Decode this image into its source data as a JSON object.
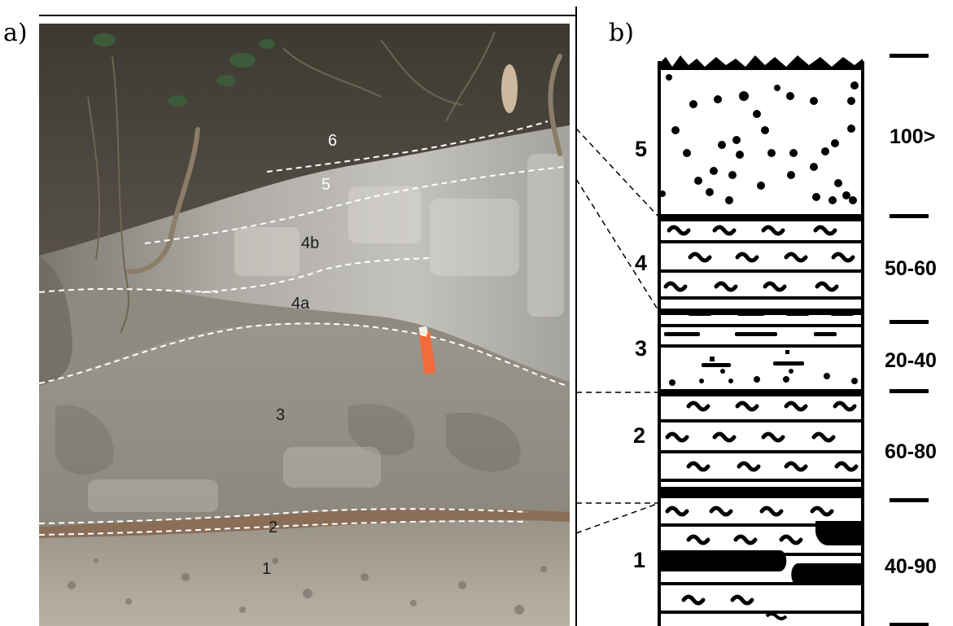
{
  "panels": {
    "a": {
      "label": "a)"
    },
    "b": {
      "label": "b)"
    }
  },
  "photo": {
    "layer_labels": [
      "6",
      "5",
      "4b",
      "4a",
      "3",
      "2",
      "1"
    ],
    "colors": {
      "soil": "#4a4238",
      "clay": "#b9b5ad",
      "boundary": "#ffffff",
      "pen": "#f36a3c"
    }
  },
  "log": {
    "units": [
      {
        "number": "1",
        "thickness": "40-90"
      },
      {
        "number": "2",
        "thickness": "60-80"
      },
      {
        "number": "3",
        "thickness": "20-40"
      },
      {
        "number": "4",
        "thickness": "50-60"
      },
      {
        "number": "5",
        "thickness": "100>"
      }
    ]
  }
}
